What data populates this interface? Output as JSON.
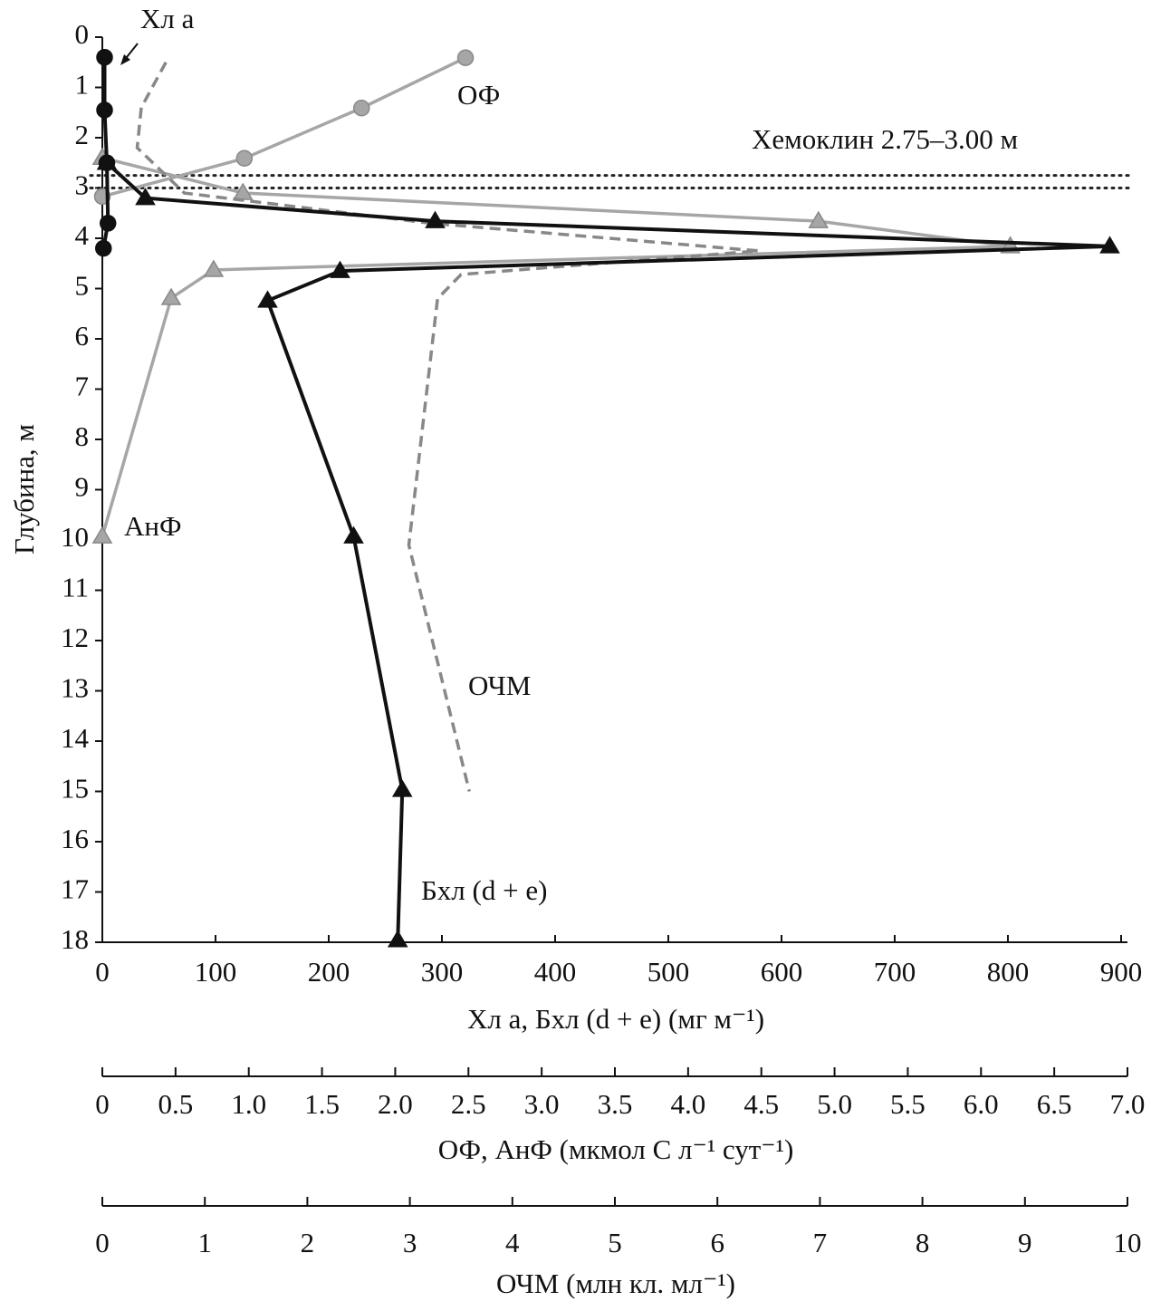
{
  "chart_data": {
    "type": "line",
    "y_label": "Глубина, м",
    "ylim": [
      0,
      18
    ],
    "y_inverted": true,
    "yticks": [
      0,
      1,
      2,
      3,
      4,
      5,
      6,
      7,
      8,
      9,
      10,
      11,
      12,
      13,
      14,
      15,
      16,
      17,
      18
    ],
    "x_label": "Хл a, Бхл (d + e) (мг м⁻¹)",
    "xlim": [
      0,
      900
    ],
    "xticks": [
      0,
      100,
      200,
      300,
      400,
      500,
      600,
      700,
      800,
      900
    ],
    "x2_label": "ОФ, АнФ (мкмол С л⁻¹ сут⁻¹)",
    "x2lim": [
      0,
      7
    ],
    "x2ticks": [
      0,
      0.5,
      {
        "value": 1,
        "label": "1.0"
      },
      1.5,
      {
        "value": 2,
        "label": "2.0"
      },
      2.5,
      {
        "value": 3,
        "label": "3.0"
      },
      3.5,
      {
        "value": 4,
        "label": "4.0"
      },
      4.5,
      {
        "value": 5,
        "label": "5.0"
      },
      5.5,
      {
        "value": 6,
        "label": "6.0"
      },
      6.5,
      {
        "value": 7,
        "label": "7.0"
      }
    ],
    "x3_label": "ОЧМ (млн  кл. мл⁻¹)",
    "x3lim": [
      0,
      10
    ],
    "x3ticks": [
      0,
      1,
      2,
      3,
      4,
      5,
      6,
      7,
      8,
      9,
      10
    ],
    "chemocline": {
      "label": "Хемоклин 2.75–3.00 м",
      "depths": [
        2.75,
        3.0
      ]
    },
    "series": [
      {
        "name": "Хл a",
        "color": "#111111",
        "marker": "circle",
        "axis": "x",
        "depths": [
          0.4,
          1.45,
          2.5,
          3.7,
          4.2
        ],
        "values": [
          2,
          2,
          4,
          5,
          1
        ]
      },
      {
        "name": "Бхл (d + e)",
        "color": "#111111",
        "marker": "triangle",
        "axis": "x",
        "depths": [
          2.5,
          3.2,
          3.66,
          4.16,
          4.65,
          5.24,
          9.93,
          14.97,
          17.96
        ],
        "values": [
          4,
          38,
          294,
          890,
          210,
          146,
          222,
          265,
          261
        ]
      },
      {
        "name": "ОФ",
        "color": "#a6a6a6",
        "marker": "circle",
        "axis": "x2",
        "depths": [
          0.41,
          1.41,
          2.41,
          3.17
        ],
        "values": [
          2.48,
          1.77,
          0.97,
          0
        ]
      },
      {
        "name": "АнФ",
        "color": "#a6a6a6",
        "marker": "triangle",
        "axis": "x2",
        "depths": [
          2.4,
          3.1,
          3.66,
          4.16,
          4.63,
          5.19,
          9.93
        ],
        "values": [
          0,
          0.96,
          4.89,
          6.2,
          0.76,
          0.47,
          0
        ]
      },
      {
        "name": "ОЧМ",
        "color": "#888888",
        "marker": "none",
        "dashed": true,
        "axis": "x3",
        "depths": [
          0.5,
          1.4,
          2.2,
          3.1,
          3.7,
          4.25,
          4.72,
          5.2,
          10.1,
          15.0
        ],
        "values": [
          0.62,
          0.38,
          0.34,
          0.8,
          3.2,
          6.4,
          3.5,
          3.27,
          2.99,
          3.58
        ]
      }
    ]
  }
}
